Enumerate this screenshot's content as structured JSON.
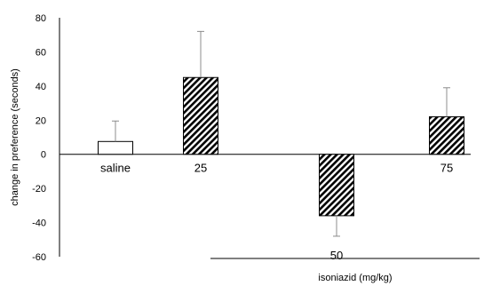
{
  "chart_data": {
    "type": "bar",
    "categories": [
      "saline",
      "25",
      "50",
      "75"
    ],
    "values": [
      7.5,
      45,
      -36,
      22
    ],
    "errors": [
      12,
      27,
      12,
      17
    ],
    "title": "",
    "xlabel": "isoniazid (mg/kg)",
    "ylabel": "change in preference (seconds)",
    "ylim": [
      -60,
      80
    ],
    "yticks": [
      80,
      60,
      40,
      20,
      0,
      -20,
      -40,
      -60
    ],
    "ytick_labels": [
      "80",
      "60",
      "40",
      "20",
      "0",
      "-20",
      "-40",
      "-60"
    ],
    "grid": false,
    "legend": "none",
    "bar_styles": [
      "open",
      "hatched",
      "hatched",
      "hatched"
    ],
    "colors": {
      "axis": "#000000",
      "bar_fill_open": "#ffffff",
      "hatch": "#000000",
      "error": "#8c8c8c"
    }
  }
}
